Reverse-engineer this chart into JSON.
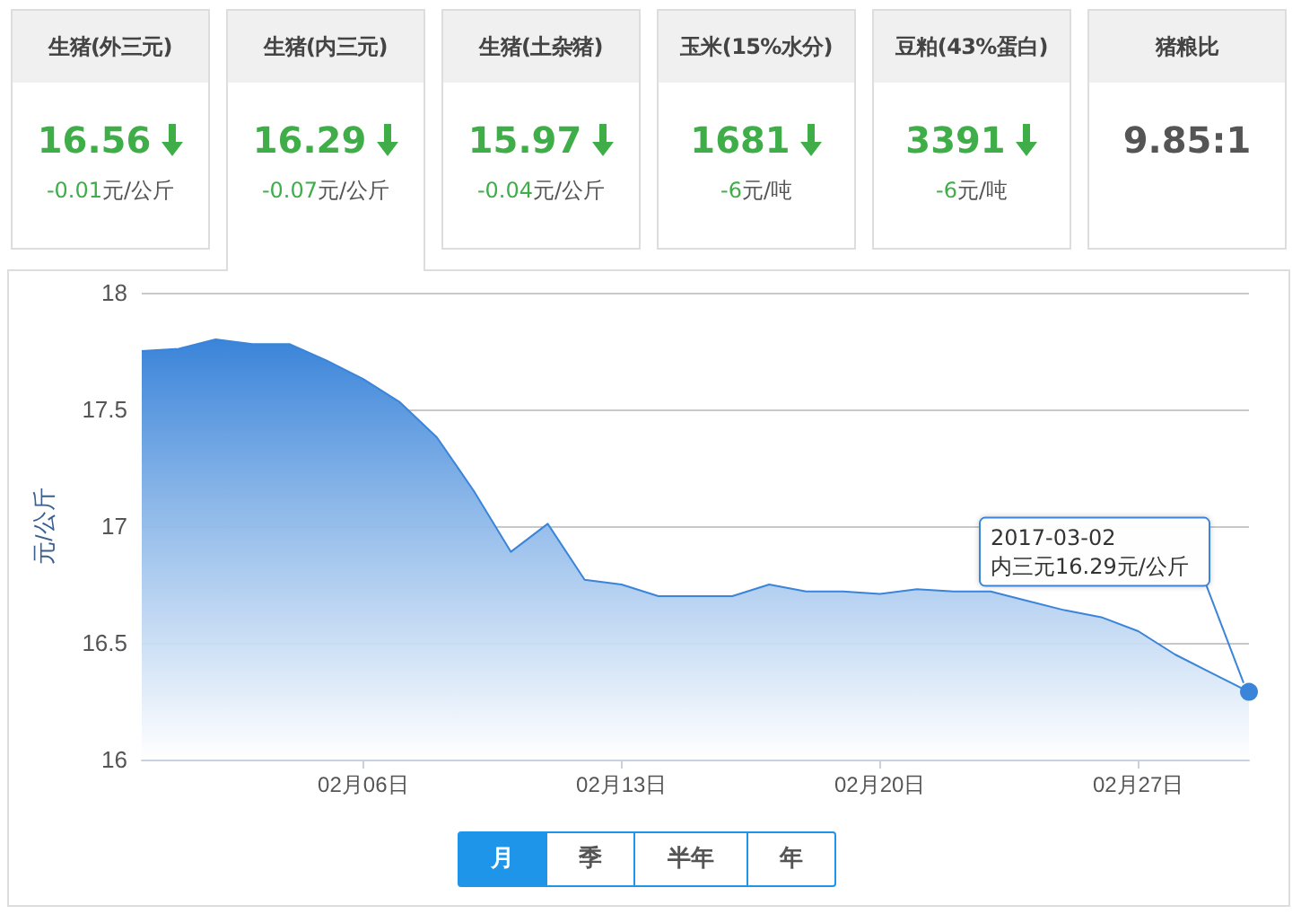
{
  "chart_data": [
    {
      "type": "other",
      "title": "生猪(外三元)",
      "annotations": [
        "16.56",
        "-0.01元/公斤"
      ]
    },
    {
      "type": "other",
      "title": "生猪(内三元)",
      "annotations": [
        "16.29",
        "-0.07元/公斤"
      ]
    },
    {
      "type": "other",
      "title": "生猪(土杂猪)",
      "annotations": [
        "15.97",
        "-0.04元/公斤"
      ]
    },
    {
      "type": "other",
      "title": "玉米(15%水分)",
      "annotations": [
        "1681",
        "-6元/吨"
      ]
    },
    {
      "type": "other",
      "title": "豆粕(43%蛋白)",
      "annotations": [
        "3391",
        "-6元/吨"
      ]
    },
    {
      "type": "other",
      "title": "猪粮比",
      "annotations": [
        "9.85:1"
      ]
    },
    {
      "type": "area",
      "ylabel": "元/公斤",
      "grid": "y",
      "marker": "none",
      "x": [
        "2017-01-31",
        "2017-02-01",
        "2017-02-02",
        "2017-02-03",
        "2017-02-04",
        "2017-02-05",
        "2017-02-06",
        "2017-02-07",
        "2017-02-08",
        "2017-02-09",
        "2017-02-10",
        "2017-02-11",
        "2017-02-12",
        "2017-02-13",
        "2017-02-14",
        "2017-02-15",
        "2017-02-16",
        "2017-02-17",
        "2017-02-18",
        "2017-02-19",
        "2017-02-20",
        "2017-02-21",
        "2017-02-22",
        "2017-02-23",
        "2017-02-24",
        "2017-02-25",
        "2017-02-26",
        "2017-02-27",
        "2017-02-28",
        "2017-03-01",
        "2017-03-02"
      ],
      "series": [
        {
          "color": "#3a84d9",
          "values": [
            17.75,
            17.76,
            17.8,
            17.78,
            17.78,
            17.71,
            17.63,
            17.53,
            17.38,
            17.15,
            16.89,
            17.01,
            16.77,
            16.75,
            16.7,
            16.7,
            16.7,
            16.75,
            16.72,
            16.72,
            16.71,
            16.73,
            16.72,
            16.72,
            16.68,
            16.64,
            16.61,
            16.55,
            16.45,
            16.37,
            16.29
          ]
        }
      ],
      "xlim": [
        "2017-01-31",
        "2017-03-02"
      ],
      "xticks": [
        {
          "value": "2017-02-06",
          "label": "02月06日"
        },
        {
          "value": "2017-02-13",
          "label": "02月13日"
        },
        {
          "value": "2017-02-20",
          "label": "02月20日"
        },
        {
          "value": "2017-02-27",
          "label": "02月27日"
        }
      ],
      "ylim": [
        16,
        18
      ],
      "yticks": [
        16,
        16.5,
        17,
        17.5,
        18
      ],
      "annotations": [
        {
          "text": "2017-03-02\n内三元16.29元/公斤",
          "x": "2017-03-02",
          "y": 16.29
        },
        "月",
        "季",
        "半年",
        "年"
      ]
    }
  ]
}
